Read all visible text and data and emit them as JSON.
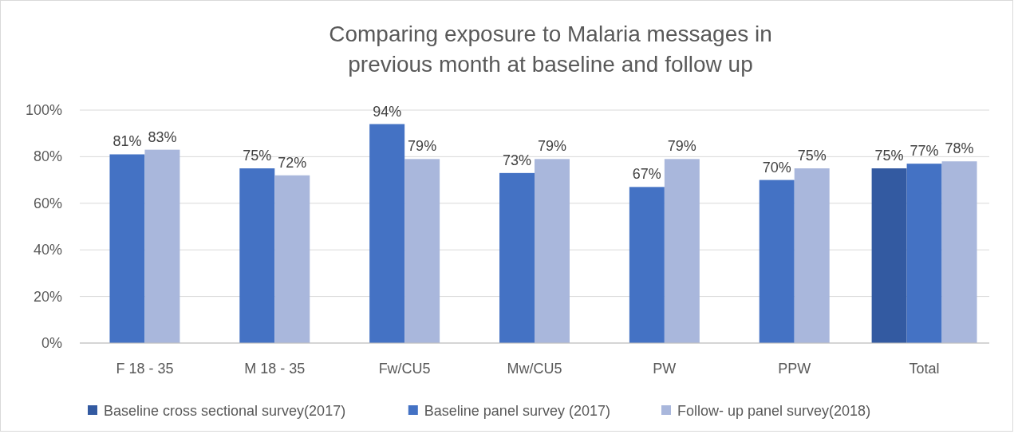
{
  "chart_data": {
    "type": "bar",
    "title": "Comparing exposure to Malaria messages in previous month at baseline and follow up",
    "categories": [
      "F 18 - 35",
      "M 18 - 35",
      "Fw/CU5",
      "Mw/CU5",
      "PW",
      "PPW",
      "Total"
    ],
    "series": [
      {
        "name": "Baseline cross sectional survey(2017)",
        "color": "#335aa1",
        "values": [
          null,
          null,
          null,
          null,
          null,
          null,
          75
        ],
        "value_labels": [
          null,
          null,
          null,
          null,
          null,
          null,
          "75%"
        ]
      },
      {
        "name": "Baseline panel survey (2017)",
        "color": "#4472c4",
        "values": [
          81,
          75,
          94,
          73,
          67,
          70,
          77
        ],
        "value_labels": [
          "81%",
          "75%",
          "94%",
          "73%",
          "67%",
          "70%",
          "77%"
        ]
      },
      {
        "name": "Follow- up panel survey(2018)",
        "color": "#a9b7dc",
        "values": [
          83,
          72,
          79,
          79,
          79,
          75,
          78
        ],
        "value_labels": [
          "83%",
          "72%",
          "79%",
          "79%",
          "79%",
          "75%",
          "78%"
        ]
      }
    ],
    "ylim": [
      0,
      100
    ],
    "yticks": [
      {
        "value": 0,
        "label": "0%"
      },
      {
        "value": 20,
        "label": "20%"
      },
      {
        "value": 40,
        "label": "40%"
      },
      {
        "value": 60,
        "label": "60%"
      },
      {
        "value": 80,
        "label": "80%"
      },
      {
        "value": 100,
        "label": "100%"
      }
    ],
    "grid": "y",
    "legend": "bottom"
  }
}
